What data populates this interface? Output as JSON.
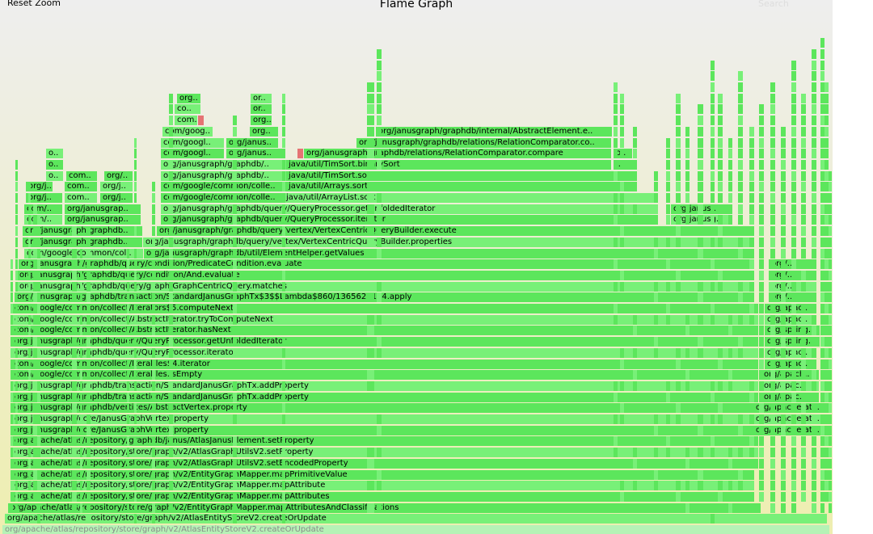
{
  "header": {
    "reset_label": "Reset Zoom",
    "title": "Flame Graph",
    "search_label": "Search"
  },
  "colors": {
    "frame_green": "#5ce65c",
    "frame_light": "#78f078",
    "frame_red": "#e57373",
    "background_top": "#eeeeee",
    "background_bottom": "#eeeeb0"
  },
  "frames": [
    {
      "label": "org/apache/atlas/repository/store/graph/v2/AtlasEntityStoreV2.createOrUpdate",
      "depth": 0,
      "start": 0.003,
      "end": 0.997,
      "faded": true
    },
    {
      "label": "org/apache/atlas/repository/store/graph/v2/AtlasEntityStoreV2.createOrUpdate",
      "depth": 1,
      "start": 0.006,
      "end": 0.994
    },
    {
      "label": "org/apache/atlas/repository/store/graph/v2/EntityGraphMapper.mapAttributesAndClassifications",
      "depth": 2,
      "start": 0.01,
      "end": 0.915
    },
    {
      "label": "org/apache/atlas/repository/store/graph/v2/EntityGraphMapper.mapAttributes",
      "depth": 3,
      "start": 0.015,
      "end": 0.905
    },
    {
      "label": "org/apache/atlas/repository/store/graph/v2/EntityGraphMapper.mapAttribute",
      "depth": 4,
      "start": 0.015,
      "end": 0.905
    },
    {
      "label": "org/apache/atlas/repository/store/graph/v2/EntityGraphMapper.mapPrimitiveValue",
      "depth": 5,
      "start": 0.015,
      "end": 0.905
    },
    {
      "label": "org/apache/atlas/repository/store/graph/v2/AtlasGraphUtilsV2.setEncodedProperty",
      "depth": 6,
      "start": 0.015,
      "end": 0.912
    },
    {
      "label": "org/apache/atlas/repository/store/graph/v2/AtlasGraphUtilsV2.setProperty",
      "depth": 7,
      "start": 0.015,
      "end": 0.912
    },
    {
      "label": "org/apache/atlas/repository/graphdb/janus/AtlasJanusElement.setProperty",
      "depth": 8,
      "start": 0.015,
      "end": 0.912
    },
    {
      "label": "org/janusgraph/core/JanusGraphVertex.property",
      "depth": 9,
      "start": 0.015,
      "end": 0.912
    },
    {
      "label": "org/janusgraph/core/JanusGraphVertex.property",
      "depth": 10,
      "start": 0.015,
      "end": 0.912
    },
    {
      "label": "org/janusgraph/graphdb/vertices/AbstractVertex.property",
      "depth": 11,
      "start": 0.015,
      "end": 0.912
    },
    {
      "label": "org/janusgraph/graphdb/transaction/StandardJanusGraphTx.addProperty",
      "depth": 12,
      "start": 0.015,
      "end": 0.912
    },
    {
      "label": "org/janusgraph/graphdb/transaction/StandardJanusGraphTx.addProperty",
      "depth": 13,
      "start": 0.015,
      "end": 0.912
    },
    {
      "label": "com/google/common/collect/Iterables.isEmpty",
      "depth": 14,
      "start": 0.015,
      "end": 0.912
    },
    {
      "label": "com/google/common/collect/Iterables$4.iterator",
      "depth": 15,
      "start": 0.015,
      "end": 0.912
    },
    {
      "label": "org/janusgraph/graphdb/query/QueryProcessor.iterator",
      "depth": 16,
      "start": 0.015,
      "end": 0.912
    },
    {
      "label": "org/janusgraph/graphdb/query/QueryProcessor.getUnfoldedIterator",
      "depth": 17,
      "start": 0.015,
      "end": 0.912
    },
    {
      "label": "com/google/common/collect/AbstractIterator.hasNext",
      "depth": 18,
      "start": 0.015,
      "end": 0.912
    },
    {
      "label": "com/google/common/collect/AbstractIterator.tryToComputeNext",
      "depth": 19,
      "start": 0.015,
      "end": 0.912
    },
    {
      "label": "com/google/common/collect/Iterators$5.computeNext",
      "depth": 20,
      "start": 0.015,
      "end": 0.912
    },
    {
      "label": "org/janusgraph/graphdb/transaction/StandardJanusGraphTx$3$$Lambda$860/1365627174.apply",
      "depth": 21,
      "start": 0.017,
      "end": 0.903
    },
    {
      "label": "org/janusgraph/graphdb/query/graph/GraphCentricQuery.matches",
      "depth": 22,
      "start": 0.02,
      "end": 0.903
    },
    {
      "label": "org/janusgraph/graphdb/query/condition/And.evaluate",
      "depth": 23,
      "start": 0.02,
      "end": 0.903
    },
    {
      "label": "org/janusgraph/graphdb/query/condition/PredicateCondition.evaluate",
      "depth": 24,
      "start": 0.022,
      "end": 0.903
    },
    {
      "label": "com/google/common/col..",
      "depth": 25,
      "start": 0.029,
      "end": 0.173
    },
    {
      "label": "org/janusgraph/graphdb/util/ElementHelper.getValues",
      "depth": 25,
      "start": 0.173,
      "end": 0.903
    },
    {
      "label": "org/janusgraph/graphdb..",
      "depth": 26,
      "start": 0.027,
      "end": 0.172
    },
    {
      "label": "org/janusgraph/graphdb/query/vertex/VertexCentricQueryBuilder.properties",
      "depth": 26,
      "start": 0.172,
      "end": 0.903
    },
    {
      "label": "org/janusgraph/graphdb..",
      "depth": 27,
      "start": 0.027,
      "end": 0.172
    },
    {
      "label": "org/janusgraph/graphdb/query/vertex/VertexCentricQueryBuilder.execute",
      "depth": 27,
      "start": 0.188,
      "end": 0.903
    },
    {
      "label": "com/..",
      "depth": 28,
      "start": 0.029,
      "end": 0.076
    },
    {
      "label": "org/janusgrap..",
      "depth": 28,
      "start": 0.078,
      "end": 0.17
    },
    {
      "label": "org/janusgraph/graphdb/query/QueryProcessor.iterator",
      "depth": 28,
      "start": 0.193,
      "end": 0.787
    },
    {
      "label": "org/janusg..",
      "depth": 28,
      "start": 0.806,
      "end": 0.878
    },
    {
      "label": "com/..",
      "depth": 29,
      "start": 0.029,
      "end": 0.076
    },
    {
      "label": "org/janusgrap..",
      "depth": 29,
      "start": 0.078,
      "end": 0.17
    },
    {
      "label": "org/janusgraph/graphdb/query/QueryProcessor.getUnfoldedIterator",
      "depth": 29,
      "start": 0.193,
      "end": 0.787
    },
    {
      "label": "org/janus..",
      "depth": 29,
      "start": 0.806,
      "end": 0.878
    },
    {
      "label": "org/j..",
      "depth": 30,
      "start": 0.031,
      "end": 0.076
    },
    {
      "label": "com..",
      "depth": 30,
      "start": 0.078,
      "end": 0.118
    },
    {
      "label": "org/j..",
      "depth": 30,
      "start": 0.12,
      "end": 0.16
    },
    {
      "label": "com/google/common/colle..",
      "depth": 30,
      "start": 0.193,
      "end": 0.341
    },
    {
      "label": "java/util/ArrayList.sort",
      "depth": 30,
      "start": 0.341,
      "end": 0.787
    },
    {
      "label": "org/j..",
      "depth": 31,
      "start": 0.031,
      "end": 0.064
    },
    {
      "label": "com..",
      "depth": 31,
      "start": 0.078,
      "end": 0.118
    },
    {
      "label": "org/j..",
      "depth": 31,
      "start": 0.12,
      "end": 0.16
    },
    {
      "label": "com/google/common/colle..",
      "depth": 31,
      "start": 0.193,
      "end": 0.344
    },
    {
      "label": "java/util/Arrays.sort",
      "depth": 31,
      "start": 0.344,
      "end": 0.765
    },
    {
      "label": "o..",
      "depth": 32,
      "start": 0.055,
      "end": 0.076
    },
    {
      "label": "com..",
      "depth": 32,
      "start": 0.08,
      "end": 0.118
    },
    {
      "label": "org/..",
      "depth": 32,
      "start": 0.125,
      "end": 0.16
    },
    {
      "label": "org/janusgraph/graphdb/..",
      "depth": 32,
      "start": 0.193,
      "end": 0.344
    },
    {
      "label": "java/util/TimSort.sort",
      "depth": 32,
      "start": 0.344,
      "end": 0.765
    },
    {
      "label": "o..",
      "depth": 33,
      "start": 0.055,
      "end": 0.076
    },
    {
      "label": "org/janusgraph/graphdb/..",
      "depth": 33,
      "start": 0.193,
      "end": 0.344
    },
    {
      "label": "java/util/TimSort.binarySort",
      "depth": 33,
      "start": 0.344,
      "end": 0.735
    },
    {
      "label": "j..",
      "depth": 33,
      "start": 0.737,
      "end": 0.765
    },
    {
      "label": "o..",
      "depth": 34,
      "start": 0.055,
      "end": 0.076
    },
    {
      "label": "com/googl..",
      "depth": 34,
      "start": 0.193,
      "end": 0.27
    },
    {
      "label": "org/janus..",
      "depth": 34,
      "start": 0.272,
      "end": 0.34
    },
    {
      "label": "",
      "depth": 34,
      "start": 0.357,
      "end": 0.365,
      "red": true
    },
    {
      "label": "org/janusgraph/graphdb/relations/RelationComparator.compare",
      "depth": 34,
      "start": 0.365,
      "end": 0.735
    },
    {
      "label": "o..",
      "depth": 34,
      "start": 0.737,
      "end": 0.76
    },
    {
      "label": "com/googl..",
      "depth": 35,
      "start": 0.193,
      "end": 0.27
    },
    {
      "label": "org/janus..",
      "depth": 35,
      "start": 0.272,
      "end": 0.335
    },
    {
      "label": "org/janusgraph/graphdb/relations/RelationComparator.co..",
      "depth": 35,
      "start": 0.428,
      "end": 0.735
    },
    {
      "label": "com/goog..",
      "depth": 36,
      "start": 0.195,
      "end": 0.256
    },
    {
      "label": "org..",
      "depth": 36,
      "start": 0.3,
      "end": 0.335
    },
    {
      "label": "org/janusgraph/graphdb/internal/AbstractElement.e..",
      "depth": 36,
      "start": 0.451,
      "end": 0.735
    },
    {
      "label": "com..",
      "depth": 37,
      "start": 0.21,
      "end": 0.238
    },
    {
      "label": "",
      "depth": 37,
      "start": 0.238,
      "end": 0.246,
      "red": true
    },
    {
      "label": "org..",
      "depth": 37,
      "start": 0.301,
      "end": 0.327
    },
    {
      "label": "co..",
      "depth": 38,
      "start": 0.21,
      "end": 0.242
    },
    {
      "label": "or..",
      "depth": 38,
      "start": 0.301,
      "end": 0.327
    },
    {
      "label": "org..",
      "depth": 39,
      "start": 0.213,
      "end": 0.242
    },
    {
      "label": "or..",
      "depth": 39,
      "start": 0.301,
      "end": 0.327
    },
    {
      "label": "org/..",
      "depth": 24,
      "start": 0.923,
      "end": 0.975
    },
    {
      "label": "org/..",
      "depth": 23,
      "start": 0.923,
      "end": 0.975
    },
    {
      "label": "org/..",
      "depth": 22,
      "start": 0.923,
      "end": 0.975
    },
    {
      "label": "org/..",
      "depth": 21,
      "start": 0.923,
      "end": 0.975
    },
    {
      "label": "org/apac..",
      "depth": 20,
      "start": 0.918,
      "end": 0.975
    },
    {
      "label": "org/apac..",
      "depth": 19,
      "start": 0.918,
      "end": 0.975
    },
    {
      "label": "org/spring..",
      "depth": 18,
      "start": 0.918,
      "end": 0.985
    },
    {
      "label": "org/spring..",
      "depth": 17,
      "start": 0.918,
      "end": 0.985
    },
    {
      "label": "org/apac..",
      "depth": 16,
      "start": 0.918,
      "end": 0.975
    },
    {
      "label": "org/apac..",
      "depth": 15,
      "start": 0.918,
      "end": 0.975
    },
    {
      "label": "org/apach..",
      "depth": 14,
      "start": 0.915,
      "end": 0.985
    },
    {
      "label": "org/apac..",
      "depth": 13,
      "start": 0.915,
      "end": 0.985
    },
    {
      "label": "org/apac..",
      "depth": 12,
      "start": 0.915,
      "end": 0.985
    },
    {
      "label": "org/apache/atl..",
      "depth": 11,
      "start": 0.905,
      "end": 0.992
    },
    {
      "label": "org/apache/atl..",
      "depth": 10,
      "start": 0.905,
      "end": 0.992
    },
    {
      "label": "org/apache/atl..",
      "depth": 9,
      "start": 0.905,
      "end": 0.992
    }
  ]
}
